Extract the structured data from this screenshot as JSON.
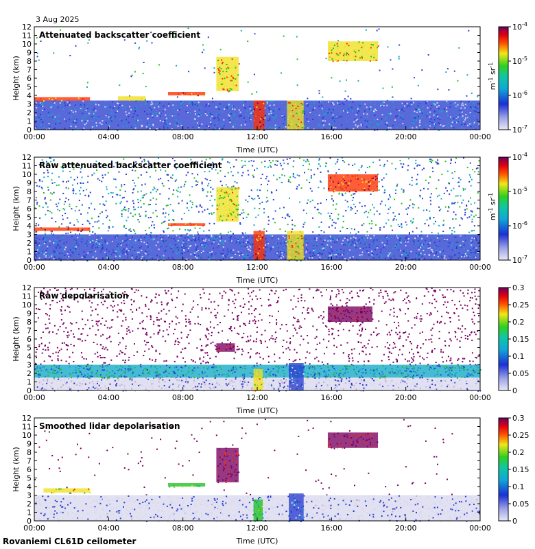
{
  "date": "3 Aug 2025",
  "footer": "Rovaniemi CL61D ceilometer",
  "colors": {
    "fill_colors": [
      "#d8d8ee",
      "#2a3fd0",
      "#12a8c8",
      "#20c020",
      "#f0e020",
      "#ff3000",
      "#7a0060"
    ]
  },
  "chart_data": [
    {
      "type": "heatmap",
      "title": "Attenuated backscatter coefficient",
      "xlabel": "Time (UTC)",
      "ylabel": "Height (km)",
      "x_ticks": [
        "00:00",
        "04:00",
        "08:00",
        "12:00",
        "16:00",
        "20:00",
        "00:00"
      ],
      "y_ticks": [
        "0",
        "1",
        "2",
        "3",
        "4",
        "5",
        "6",
        "7",
        "8",
        "9",
        "10",
        "11",
        "12"
      ],
      "ylim": [
        0,
        12
      ],
      "xlim_hours": [
        0,
        24
      ],
      "colorbar": {
        "scale": "log",
        "ticks": [
          "10",
          "10",
          "10",
          "10"
        ],
        "exponents": [
          "-7",
          "-6",
          "-5",
          "-4"
        ],
        "unit_main": "m",
        "unit_exp1": "-1",
        "unit_mid": " sr",
        "unit_exp2": "-1"
      },
      "noise_density": 0.05,
      "features": [
        {
          "name": "boundary layer",
          "t0": 0,
          "t1": 24,
          "h0": 0,
          "h1": 3.4,
          "level": 1
        },
        {
          "name": "cloud 02h",
          "t0": 0,
          "t1": 3,
          "h0": 3.4,
          "h1": 3.8,
          "level": 5
        },
        {
          "name": "cloud 06h",
          "t0": 4.5,
          "t1": 6,
          "h0": 3.4,
          "h1": 3.9,
          "level": 4
        },
        {
          "name": "cloud 08h",
          "t0": 7.2,
          "t1": 9.2,
          "h0": 4.0,
          "h1": 4.4,
          "level": 5
        },
        {
          "name": "high cloud 10h",
          "t0": 9.8,
          "t1": 11,
          "h0": 4.5,
          "h1": 8.5,
          "level": 4
        },
        {
          "name": "precip 12h",
          "t0": 11.8,
          "t1": 12.4,
          "h0": 0,
          "h1": 3.4,
          "level": 5
        },
        {
          "name": "precip 14h",
          "t0": 13.6,
          "t1": 14.5,
          "h0": 0,
          "h1": 3.4,
          "level": 4
        },
        {
          "name": "cloud 17h",
          "t0": 15.8,
          "t1": 18.5,
          "h0": 8.0,
          "h1": 10.3,
          "level": 4
        }
      ]
    },
    {
      "type": "heatmap",
      "title": "Raw attenuated backscatter coefficient",
      "xlabel": "Time (UTC)",
      "ylabel": "Height (km)",
      "x_ticks": [
        "00:00",
        "04:00",
        "08:00",
        "12:00",
        "16:00",
        "20:00",
        "00:00"
      ],
      "y_ticks": [
        "0",
        "1",
        "2",
        "3",
        "4",
        "5",
        "6",
        "7",
        "8",
        "9",
        "10",
        "11",
        "12"
      ],
      "ylim": [
        0,
        12
      ],
      "xlim_hours": [
        0,
        24
      ],
      "colorbar": {
        "scale": "log",
        "ticks": [
          "10",
          "10",
          "10",
          "10"
        ],
        "exponents": [
          "-7",
          "-6",
          "-5",
          "-4"
        ],
        "unit_main": "m",
        "unit_exp1": "-1",
        "unit_mid": " sr",
        "unit_exp2": "-1"
      },
      "noise_density": 0.55,
      "features": [
        {
          "name": "boundary layer",
          "t0": 0,
          "t1": 24,
          "h0": 0,
          "h1": 3.0,
          "level": 1
        },
        {
          "name": "cloud 02h",
          "t0": 0,
          "t1": 3,
          "h0": 3.4,
          "h1": 3.8,
          "level": 5
        },
        {
          "name": "cloud 08h",
          "t0": 7.2,
          "t1": 9.2,
          "h0": 4.0,
          "h1": 4.3,
          "level": 5
        },
        {
          "name": "high cloud 10h",
          "t0": 9.8,
          "t1": 11,
          "h0": 4.5,
          "h1": 8.5,
          "level": 4
        },
        {
          "name": "precip 12h",
          "t0": 11.8,
          "t1": 12.4,
          "h0": 0,
          "h1": 3.4,
          "level": 5
        },
        {
          "name": "precip 14h",
          "t0": 13.6,
          "t1": 14.5,
          "h0": 0,
          "h1": 3.4,
          "level": 4
        },
        {
          "name": "cloud 17h",
          "t0": 15.8,
          "t1": 18.5,
          "h0": 8.0,
          "h1": 10.0,
          "level": 5
        }
      ]
    },
    {
      "type": "heatmap",
      "title": "Raw depolarisation",
      "xlabel": "Time (UTC)",
      "ylabel": "Height (km)",
      "x_ticks": [
        "00:00",
        "04:00",
        "08:00",
        "12:00",
        "16:00",
        "20:00",
        "00:00"
      ],
      "y_ticks": [
        "0",
        "1",
        "2",
        "3",
        "4",
        "5",
        "6",
        "7",
        "8",
        "9",
        "10",
        "11",
        "12"
      ],
      "ylim": [
        0,
        12
      ],
      "xlim_hours": [
        0,
        24
      ],
      "colorbar": {
        "scale": "linear",
        "range": [
          0,
          0.3
        ],
        "ticks": [
          "0",
          "0.05",
          "0.1",
          "0.15",
          "0.2",
          "0.25",
          "0.3"
        ]
      },
      "noise_density": 0.6,
      "noise_level": 6,
      "features": [
        {
          "name": "boundary layer",
          "t0": 0,
          "t1": 24,
          "h0": 0,
          "h1": 1.5,
          "level": 0
        },
        {
          "name": "mixed layer",
          "t0": 0,
          "t1": 24,
          "h0": 1.5,
          "h1": 3.0,
          "level": 2
        },
        {
          "name": "precip 12h",
          "t0": 11.8,
          "t1": 12.3,
          "h0": 0,
          "h1": 2.5,
          "level": 4
        },
        {
          "name": "precip 14h",
          "t0": 13.7,
          "t1": 14.5,
          "h0": 0,
          "h1": 3.2,
          "level": 1
        },
        {
          "name": "cloud 17h",
          "t0": 15.8,
          "t1": 18.2,
          "h0": 8.0,
          "h1": 9.8,
          "level": 6
        },
        {
          "name": "high cloud 10h",
          "t0": 9.8,
          "t1": 10.8,
          "h0": 4.5,
          "h1": 5.5,
          "level": 6
        }
      ]
    },
    {
      "type": "heatmap",
      "title": "Smoothed lidar depolarisation",
      "xlabel": "Time (UTC)",
      "ylabel": "Height (km)",
      "x_ticks": [
        "00:00",
        "04:00",
        "08:00",
        "12:00",
        "16:00",
        "20:00",
        "00:00"
      ],
      "y_ticks": [
        "0",
        "1",
        "2",
        "3",
        "4",
        "5",
        "6",
        "7",
        "8",
        "9",
        "10",
        "11",
        "12"
      ],
      "ylim": [
        0,
        12
      ],
      "xlim_hours": [
        0,
        24
      ],
      "colorbar": {
        "scale": "linear",
        "range": [
          0,
          0.3
        ],
        "ticks": [
          "0",
          "0.05",
          "0.1",
          "0.15",
          "0.2",
          "0.25",
          "0.3"
        ]
      },
      "noise_density": 0.05,
      "noise_level": 6,
      "features": [
        {
          "name": "boundary layer",
          "t0": 0,
          "t1": 24,
          "h0": 0,
          "h1": 3.0,
          "level": 0
        },
        {
          "name": "cloud 02h",
          "t0": 0.5,
          "t1": 3,
          "h0": 3.3,
          "h1": 3.8,
          "level": 4
        },
        {
          "name": "cloud 08h",
          "t0": 7.2,
          "t1": 9.2,
          "h0": 4.0,
          "h1": 4.4,
          "level": 3
        },
        {
          "name": "high cloud 10h",
          "t0": 9.8,
          "t1": 11,
          "h0": 4.5,
          "h1": 8.5,
          "level": 6
        },
        {
          "name": "precip 12h",
          "t0": 11.8,
          "t1": 12.3,
          "h0": 0,
          "h1": 2.5,
          "level": 3
        },
        {
          "name": "precip 14h",
          "t0": 13.7,
          "t1": 14.5,
          "h0": 0,
          "h1": 3.2,
          "level": 1
        },
        {
          "name": "cloud 17h",
          "t0": 15.8,
          "t1": 18.5,
          "h0": 8.5,
          "h1": 10.3,
          "level": 6
        }
      ]
    }
  ]
}
